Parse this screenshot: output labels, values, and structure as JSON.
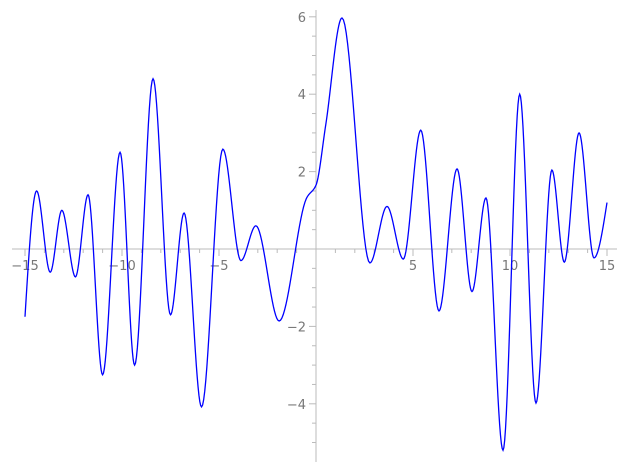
{
  "chart_data": {
    "type": "line",
    "title": "",
    "xlabel": "",
    "ylabel": "",
    "xlim": [
      -15,
      15
    ],
    "ylim": [
      -5.4,
      6.1
    ],
    "grid": false,
    "x_ticks": [
      "-15",
      "-10",
      "-5",
      "5",
      "10",
      "15"
    ],
    "y_ticks": [
      "-4",
      "-2",
      "2",
      "4",
      "6"
    ],
    "line_color": "#0000ff",
    "axis_color": "#bbbbbb",
    "series": [
      {
        "x": [
          -15,
          -14.4,
          -13.7,
          -13.1,
          -12.4,
          -11.75,
          -11.0,
          -10.1,
          -9.35,
          -8.4,
          -7.5,
          -6.8,
          -5.9,
          -4.8,
          -3.87,
          -3.1,
          -1.9,
          -0.5,
          0,
          0.5,
          1.34,
          2.78,
          3.66,
          4.5,
          5.4,
          6.34,
          7.27,
          8.04,
          8.76,
          9.64,
          10.5,
          11.34,
          12.16,
          12.8,
          13.56,
          14.33,
          15
        ],
        "y": [
          -1.75,
          1.5,
          -0.6,
          1.0,
          -0.72,
          1.4,
          -3.25,
          2.5,
          -3.0,
          4.4,
          -1.7,
          0.93,
          -4.08,
          2.58,
          -0.3,
          0.6,
          -1.86,
          1.3,
          1.65,
          3.2,
          5.97,
          -0.36,
          1.1,
          -0.26,
          3.07,
          -1.6,
          2.07,
          -1.1,
          1.32,
          -5.2,
          4.0,
          -3.98,
          2.04,
          -0.34,
          3.0,
          -0.23,
          1.2
        ]
      }
    ]
  }
}
